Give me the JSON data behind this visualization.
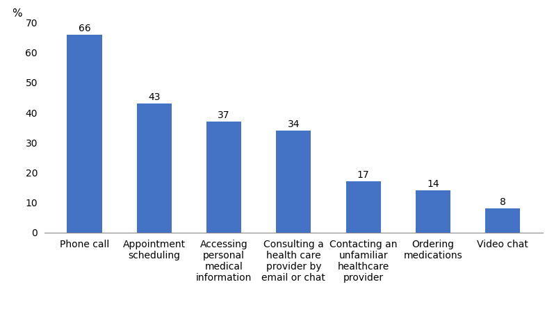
{
  "categories": [
    "Phone call",
    "Appointment\nscheduling",
    "Accessing\npersonal\nmedical\ninformation",
    "Consulting a\nhealth care\nprovider by\nemail or chat",
    "Contacting an\nunfamiliar\nhealthcare\nprovider",
    "Ordering\nmedications",
    "Video chat"
  ],
  "values": [
    66,
    43,
    37,
    34,
    17,
    14,
    8
  ],
  "bar_color": "#4472C4",
  "ylabel": "%",
  "ylim": [
    0,
    70
  ],
  "yticks": [
    0,
    10,
    20,
    30,
    40,
    50,
    60,
    70
  ],
  "value_labels": [
    66,
    43,
    37,
    34,
    17,
    14,
    8
  ],
  "label_fontsize": 10,
  "tick_fontsize": 10,
  "ylabel_fontsize": 11,
  "bar_width": 0.5
}
